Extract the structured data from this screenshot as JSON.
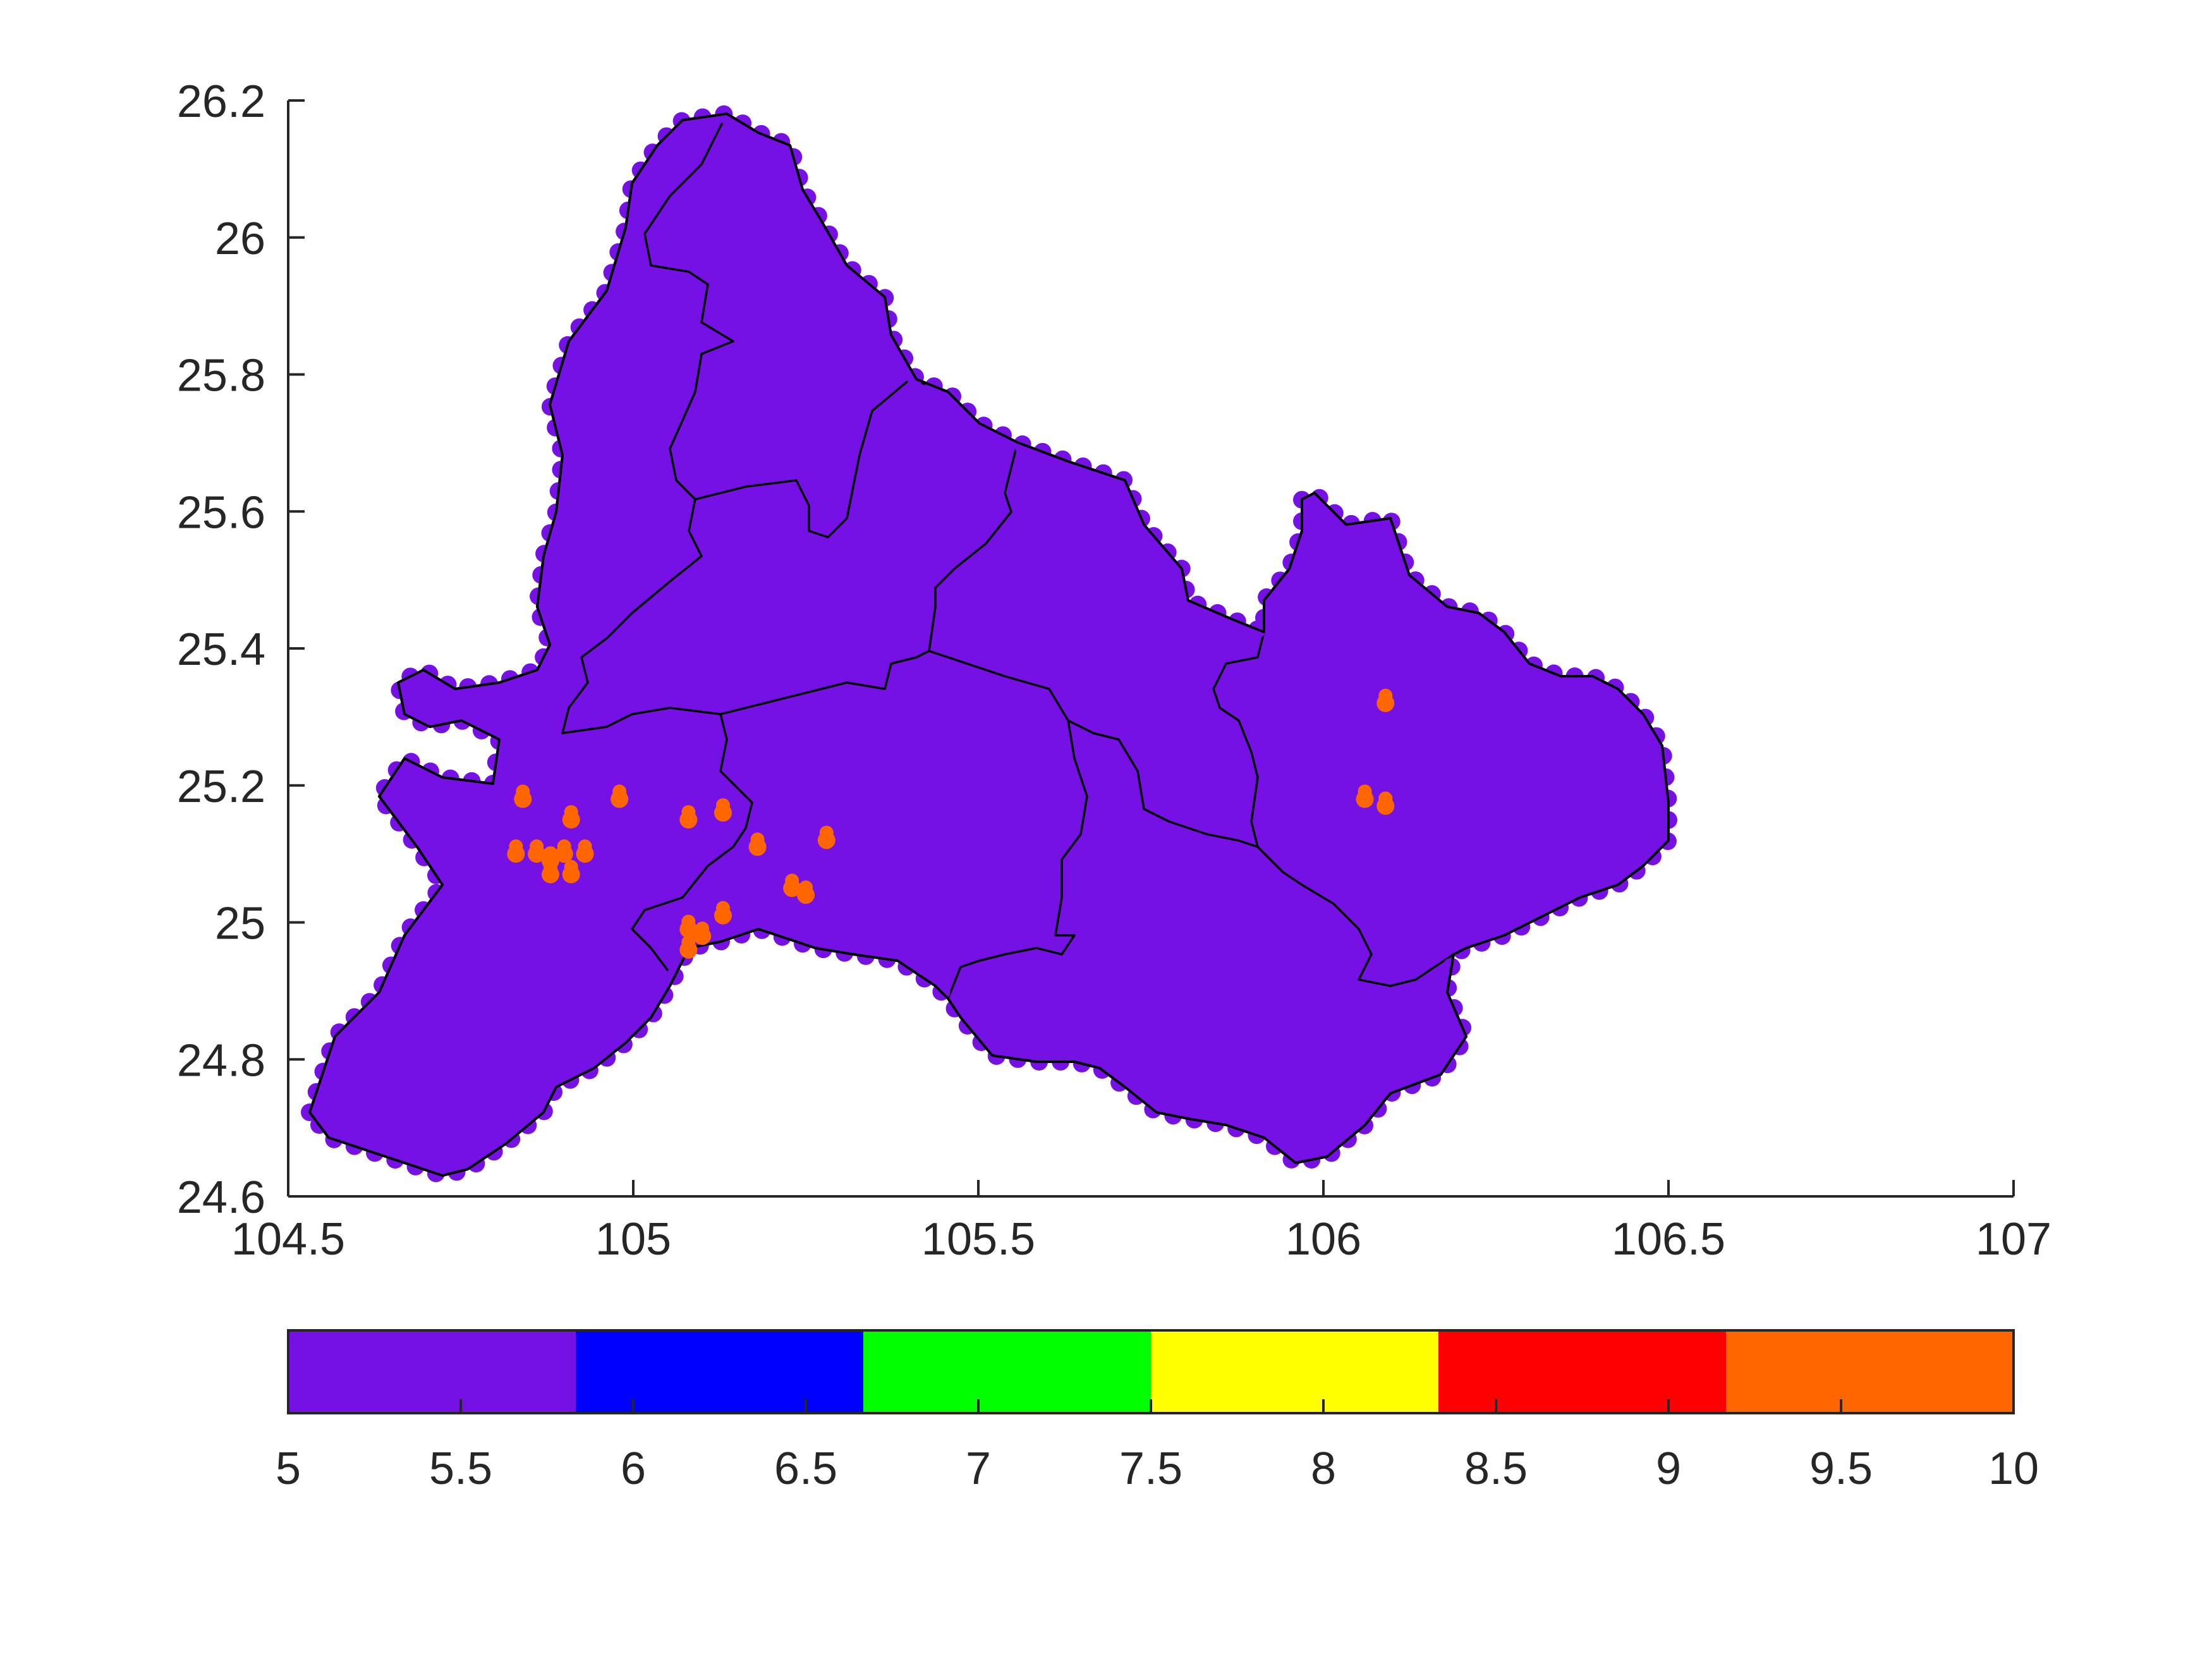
{
  "chart_data": {
    "type": "heatmap",
    "title": "",
    "xlabel": "",
    "ylabel": "",
    "xlim": [
      104.5,
      107
    ],
    "ylim": [
      24.6,
      26.2
    ],
    "xticks": [
      "104.5",
      "105",
      "105.5",
      "106",
      "106.5",
      "107"
    ],
    "yticks": [
      "24.6",
      "24.8",
      "25",
      "25.2",
      "25.4",
      "25.6",
      "25.8",
      "26",
      "26.2"
    ],
    "grid": false,
    "region_fill": {
      "value": 5.4,
      "color": "#7611e6"
    },
    "boundary_color": "#000000",
    "points": [
      {
        "x": 104.84,
        "y": 25.18,
        "value": 9.6
      },
      {
        "x": 104.91,
        "y": 25.15,
        "value": 9.6
      },
      {
        "x": 104.98,
        "y": 25.18,
        "value": 9.6
      },
      {
        "x": 105.08,
        "y": 25.15,
        "value": 9.6
      },
      {
        "x": 105.13,
        "y": 25.16,
        "value": 9.6
      },
      {
        "x": 104.83,
        "y": 25.1,
        "value": 9.6
      },
      {
        "x": 104.86,
        "y": 25.1,
        "value": 9.6
      },
      {
        "x": 104.88,
        "y": 25.09,
        "value": 9.6
      },
      {
        "x": 104.9,
        "y": 25.1,
        "value": 9.6
      },
      {
        "x": 104.93,
        "y": 25.1,
        "value": 9.6
      },
      {
        "x": 104.88,
        "y": 25.07,
        "value": 9.6
      },
      {
        "x": 104.91,
        "y": 25.07,
        "value": 9.6
      },
      {
        "x": 105.18,
        "y": 25.11,
        "value": 9.6
      },
      {
        "x": 105.28,
        "y": 25.12,
        "value": 9.6
      },
      {
        "x": 105.23,
        "y": 25.05,
        "value": 9.6
      },
      {
        "x": 105.25,
        "y": 25.04,
        "value": 9.6
      },
      {
        "x": 105.08,
        "y": 24.99,
        "value": 9.6
      },
      {
        "x": 105.1,
        "y": 24.98,
        "value": 9.6
      },
      {
        "x": 105.08,
        "y": 24.96,
        "value": 9.6
      },
      {
        "x": 105.13,
        "y": 25.01,
        "value": 9.6
      },
      {
        "x": 106.09,
        "y": 25.32,
        "value": 9.6
      },
      {
        "x": 106.06,
        "y": 25.18,
        "value": 9.6
      },
      {
        "x": 106.09,
        "y": 25.17,
        "value": 9.6
      }
    ],
    "colorbar": {
      "ticks": [
        "5",
        "5.5",
        "6",
        "6.5",
        "7",
        "7.5",
        "8",
        "8.5",
        "9",
        "9.5",
        "10"
      ],
      "range": [
        5,
        10
      ],
      "bands": [
        {
          "from": 5,
          "to": 5.8333,
          "color": "#7611e6"
        },
        {
          "from": 5.8333,
          "to": 6.6667,
          "color": "#0000ff"
        },
        {
          "from": 6.6667,
          "to": 7.5,
          "color": "#00ff00"
        },
        {
          "from": 7.5,
          "to": 8.3333,
          "color": "#ffff00"
        },
        {
          "from": 8.3333,
          "to": 9.1667,
          "color": "#ff0000"
        },
        {
          "from": 9.1667,
          "to": 10,
          "color": "#ff6600"
        }
      ],
      "placement": "bottom"
    }
  }
}
